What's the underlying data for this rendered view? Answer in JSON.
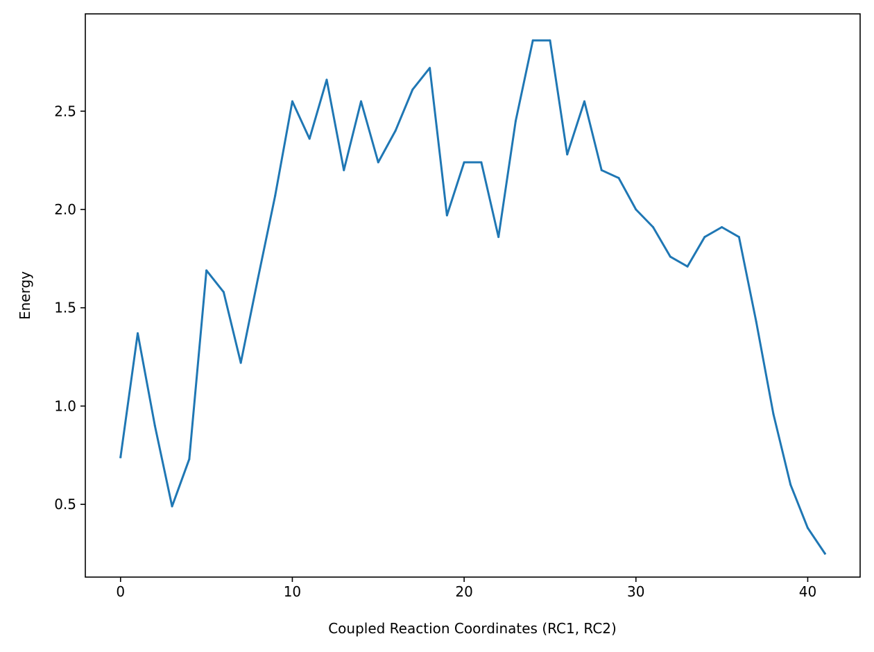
{
  "chart_data": {
    "type": "line",
    "title": "",
    "xlabel": "Coupled Reaction Coordinates (RC1, RC2)",
    "ylabel": "Energy",
    "xlim": [
      -2.05,
      43.05
    ],
    "ylim": [
      0.13,
      2.995
    ],
    "xticks": [
      0,
      10,
      20,
      30,
      40
    ],
    "xtick_labels": [
      "0",
      "10",
      "20",
      "30",
      "40"
    ],
    "yticks": [
      0.5,
      1.0,
      1.5,
      2.0,
      2.5
    ],
    "ytick_labels": [
      "0.5",
      "1.0",
      "1.5",
      "2.0",
      "2.5"
    ],
    "grid": false,
    "series": [
      {
        "color": "#1f77b4",
        "x": [
          0,
          1,
          2,
          3,
          4,
          5,
          6,
          7,
          8,
          9,
          10,
          11,
          12,
          13,
          14,
          15,
          16,
          17,
          18,
          19,
          20,
          21,
          22,
          23,
          24,
          25,
          26,
          27,
          28,
          29,
          30,
          31,
          32,
          33,
          34,
          35,
          36,
          37,
          38,
          39,
          40,
          41
        ],
        "y": [
          0.74,
          1.37,
          0.9,
          0.49,
          0.73,
          1.69,
          1.58,
          1.22,
          1.65,
          2.07,
          2.55,
          2.36,
          2.66,
          2.2,
          2.55,
          2.24,
          2.4,
          2.61,
          2.72,
          1.97,
          2.24,
          2.24,
          1.86,
          2.45,
          2.86,
          2.86,
          2.28,
          2.55,
          2.2,
          2.16,
          2.0,
          1.91,
          1.76,
          1.71,
          1.86,
          1.91,
          1.86,
          1.43,
          0.96,
          0.6,
          0.38,
          0.25
        ]
      }
    ]
  }
}
